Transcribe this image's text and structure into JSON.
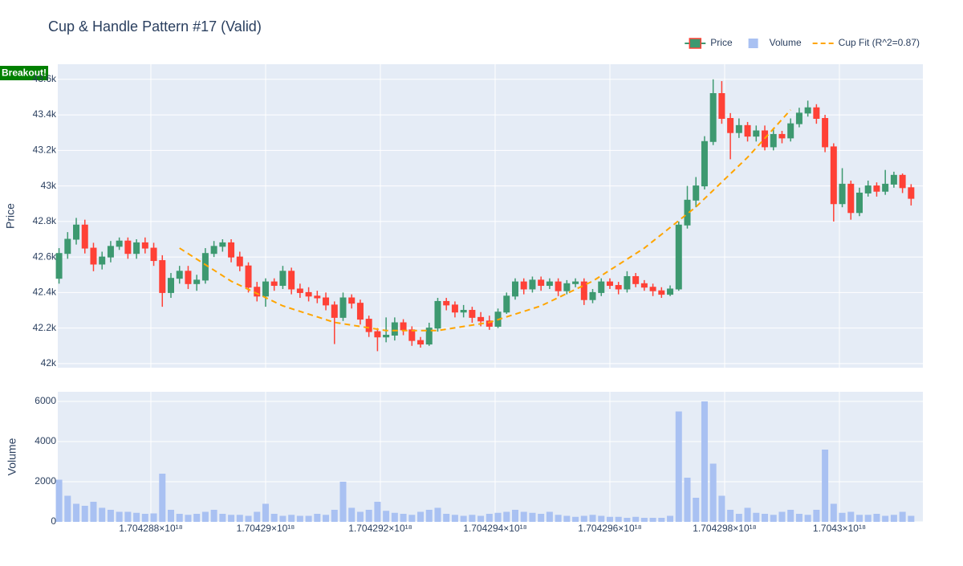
{
  "chart_data": {
    "type": "candlestick",
    "title": "Cup & Handle Pattern #17 (Valid)",
    "grid": true,
    "legend_position": "top-right",
    "x": [
      1704286400000000000,
      1704286550000000000,
      1704286700000000000,
      1704286850000000000,
      1704287000000000000,
      1704287150000000000,
      1704287300000000000,
      1704287450000000000,
      1704287600000000000,
      1704287750000000000,
      1704287900000000000,
      1704288050000000000,
      1704288200000000000,
      1704288350000000000,
      1704288500000000000,
      1704288650000000000,
      1704288800000000000,
      1704288950000000000,
      1704289100000000000,
      1704289250000000000,
      1704289400000000000,
      1704289550000000000,
      1704289700000000000,
      1704289850000000000,
      1704290000000000000,
      1704290150000000000,
      1704290300000000000,
      1704290450000000000,
      1704290600000000000,
      1704290750000000000,
      1704290900000000000,
      1704291050000000000,
      1704291200000000000,
      1704291350000000000,
      1704291500000000000,
      1704291650000000000,
      1704291800000000000,
      1704291950000000000,
      1704292100000000000,
      1704292250000000000,
      1704292400000000000,
      1704292550000000000,
      1704292700000000000,
      1704292850000000000,
      1704293000000000000,
      1704293150000000000,
      1704293300000000000,
      1704293450000000000,
      1704293600000000000,
      1704293750000000000,
      1704293900000000000,
      1704294050000000000,
      1704294200000000000,
      1704294350000000000,
      1704294500000000000,
      1704294650000000000,
      1704294800000000000,
      1704294950000000000,
      1704295100000000000,
      1704295250000000000,
      1704295400000000000,
      1704295550000000000,
      1704295700000000000,
      1704295850000000000,
      1704296000000000000,
      1704296150000000000,
      1704296300000000000,
      1704296450000000000,
      1704296600000000000,
      1704296750000000000,
      1704296900000000000,
      1704297050000000000,
      1704297200000000000,
      1704297350000000000,
      1704297500000000000,
      1704297650000000000,
      1704297800000000000,
      1704297950000000000,
      1704298100000000000,
      1704298250000000000,
      1704298400000000000,
      1704298550000000000,
      1704298700000000000,
      1704298850000000000,
      1704299000000000000,
      1704299150000000000,
      1704299300000000000,
      1704299450000000000,
      1704299600000000000,
      1704299750000000000,
      1704299900000000000,
      1704300050000000000,
      1704300200000000000,
      1704300350000000000,
      1704300500000000000,
      1704300650000000000,
      1704300800000000000,
      1704300950000000000,
      1704301100000000000,
      1704301250000000000
    ],
    "xlim": [
      1704286378000000000,
      1704301455000000000
    ],
    "xticks": [
      {
        "value": 1704288000000000000,
        "label": "1.704288×10¹⁸"
      },
      {
        "value": 1704290000000000000,
        "label": "1.70429×10¹⁸"
      },
      {
        "value": 1704292000000000000,
        "label": "1.704292×10¹⁸"
      },
      {
        "value": 1704294000000000000,
        "label": "1.704294×10¹⁸"
      },
      {
        "value": 1704296000000000000,
        "label": "1.704296×10¹⁸"
      },
      {
        "value": 1704298000000000000,
        "label": "1.704298×10¹⁸"
      },
      {
        "value": 1704300000000000000,
        "label": "1.7043×10¹⁸"
      }
    ],
    "ylabel": "Price",
    "ylim": [
      41977,
      43685
    ],
    "yticks": [
      {
        "value": 42000,
        "label": "42k"
      },
      {
        "value": 42200,
        "label": "42.2k"
      },
      {
        "value": 42400,
        "label": "42.4k"
      },
      {
        "value": 42600,
        "label": "42.6k"
      },
      {
        "value": 42800,
        "label": "42.8k"
      },
      {
        "value": 43000,
        "label": "43k"
      },
      {
        "value": 43200,
        "label": "43.2k"
      },
      {
        "value": 43400,
        "label": "43.4k"
      },
      {
        "value": 43600,
        "label": "43.6k"
      }
    ],
    "y2label": "Volume",
    "y2lim": [
      0,
      6480
    ],
    "y2ticks": [
      0,
      2000,
      4000,
      6000
    ],
    "series": [
      {
        "name": "Price",
        "type": "candlestick",
        "increasing_color": "#3d9970",
        "decreasing_color": "#ff4136",
        "open": [
          42480,
          42620,
          42700,
          42780,
          42650,
          42560,
          42600,
          42660,
          42690,
          42620,
          42680,
          42650,
          42580,
          42400,
          42480,
          42520,
          42450,
          42470,
          42620,
          42660,
          42680,
          42600,
          42550,
          42430,
          42380,
          42460,
          42440,
          42520,
          42420,
          42400,
          42380,
          42370,
          42330,
          42260,
          42370,
          42340,
          42250,
          42180,
          42150,
          42160,
          42230,
          42190,
          42130,
          42110,
          42200,
          42350,
          42330,
          42290,
          42300,
          42260,
          42240,
          42210,
          42290,
          42380,
          42460,
          42420,
          42470,
          42440,
          42460,
          42410,
          42450,
          42460,
          42360,
          42400,
          42460,
          42440,
          42420,
          42490,
          42450,
          42430,
          42410,
          42390,
          42420,
          42780,
          42920,
          43000,
          43250,
          43520,
          43380,
          43300,
          43340,
          43280,
          43310,
          43220,
          43290,
          43270,
          43350,
          43410,
          43440,
          43380,
          43220,
          42900,
          43010,
          42850,
          42960,
          43000,
          42970,
          43010,
          43060,
          42990
        ],
        "high": [
          42650,
          42740,
          42820,
          42810,
          42680,
          42630,
          42690,
          42710,
          42710,
          42700,
          42710,
          42680,
          42610,
          42510,
          42550,
          42550,
          42500,
          42650,
          42690,
          42700,
          42700,
          42630,
          42570,
          42460,
          42480,
          42480,
          42550,
          42540,
          42450,
          42430,
          42410,
          42400,
          42350,
          42400,
          42390,
          42360,
          42270,
          42200,
          42260,
          42260,
          42250,
          42210,
          42150,
          42230,
          42370,
          42370,
          42350,
          42330,
          42320,
          42290,
          42270,
          42310,
          42400,
          42480,
          42480,
          42490,
          42490,
          42480,
          42480,
          42470,
          42480,
          42480,
          42420,
          42480,
          42480,
          42460,
          42520,
          42510,
          42470,
          42450,
          42430,
          42440,
          42800,
          43000,
          43050,
          43280,
          43600,
          43590,
          43410,
          43380,
          43360,
          43340,
          43340,
          43320,
          43310,
          43380,
          43440,
          43480,
          43460,
          43400,
          43240,
          43100,
          43030,
          42990,
          43030,
          43020,
          43090,
          43080,
          43070,
          43010
        ],
        "low": [
          42450,
          42590,
          42670,
          42620,
          42520,
          42530,
          42570,
          42640,
          42590,
          42590,
          42620,
          42550,
          42320,
          42370,
          42450,
          42420,
          42410,
          42450,
          42600,
          42630,
          42570,
          42520,
          42400,
          42350,
          42320,
          42410,
          42420,
          42390,
          42370,
          42350,
          42340,
          42300,
          42110,
          42240,
          42310,
          42220,
          42150,
          42070,
          42120,
          42130,
          42160,
          42100,
          42090,
          42100,
          42180,
          42300,
          42260,
          42260,
          42230,
          42210,
          42190,
          42200,
          42280,
          42360,
          42390,
          42400,
          42410,
          42420,
          42380,
          42390,
          42430,
          42330,
          42340,
          42380,
          42420,
          42390,
          42400,
          42430,
          42410,
          42380,
          42370,
          42380,
          42410,
          42760,
          42880,
          42980,
          43230,
          43350,
          43150,
          43270,
          43250,
          43250,
          43200,
          43200,
          43240,
          43250,
          43330,
          43390,
          43350,
          43190,
          42800,
          42880,
          42810,
          42830,
          42940,
          42940,
          42950,
          42990,
          42960,
          42890
        ],
        "close": [
          42620,
          42700,
          42780,
          42650,
          42560,
          42600,
          42660,
          42690,
          42620,
          42680,
          42650,
          42580,
          42400,
          42480,
          42520,
          42450,
          42470,
          42620,
          42660,
          42680,
          42600,
          42550,
          42430,
          42380,
          42460,
          42440,
          42520,
          42420,
          42400,
          42380,
          42370,
          42330,
          42260,
          42370,
          42340,
          42250,
          42180,
          42150,
          42160,
          42230,
          42190,
          42130,
          42110,
          42200,
          42350,
          42330,
          42290,
          42300,
          42260,
          42240,
          42210,
          42290,
          42380,
          42460,
          42420,
          42470,
          42440,
          42460,
          42410,
          42450,
          42460,
          42360,
          42400,
          42460,
          42440,
          42420,
          42490,
          42450,
          42430,
          42410,
          42390,
          42420,
          42780,
          42920,
          43000,
          43250,
          43520,
          43380,
          43300,
          43340,
          43280,
          43310,
          43220,
          43290,
          43270,
          43350,
          43410,
          43440,
          43380,
          43220,
          42900,
          43010,
          42850,
          42960,
          43000,
          42970,
          43010,
          43060,
          42990,
          42930
        ]
      },
      {
        "name": "Volume",
        "type": "bar",
        "axis": "y2",
        "color": "#a9c1f2",
        "values": [
          2100,
          1300,
          900,
          800,
          1000,
          700,
          600,
          500,
          500,
          450,
          400,
          420,
          2400,
          600,
          400,
          350,
          400,
          500,
          600,
          400,
          350,
          350,
          300,
          500,
          900,
          400,
          300,
          350,
          300,
          300,
          400,
          350,
          600,
          2000,
          700,
          500,
          600,
          1000,
          550,
          450,
          400,
          350,
          500,
          600,
          700,
          400,
          350,
          300,
          350,
          300,
          400,
          450,
          500,
          600,
          500,
          450,
          400,
          500,
          350,
          300,
          250,
          300,
          350,
          300,
          250,
          250,
          200,
          250,
          200,
          200,
          200,
          300,
          5500,
          2200,
          1200,
          6000,
          2900,
          1300,
          600,
          400,
          700,
          450,
          400,
          350,
          500,
          600,
          400,
          350,
          600,
          3600,
          900,
          450,
          500,
          350,
          350,
          400,
          300,
          350,
          500,
          300
        ]
      },
      {
        "name": "Cup Fit (R^2=0.87)",
        "type": "line",
        "color": "#ffa500",
        "dash": true,
        "x": [
          1704288500000000000,
          1704289400000000000,
          1704290300000000000,
          1704291200000000000,
          1704292100000000000,
          1704293000000000000,
          1704293900000000000,
          1704294800000000000,
          1704295700000000000,
          1704296600000000000,
          1704297500000000000,
          1704298400000000000,
          1704299150000000000
        ],
        "values": [
          42650,
          42464,
          42325,
          42232,
          42186,
          42186,
          42232,
          42325,
          42464,
          42650,
          42882,
          43161,
          43428
        ]
      }
    ],
    "annotations": [
      {
        "text": "Breakout!",
        "color": "#008000"
      }
    ]
  }
}
